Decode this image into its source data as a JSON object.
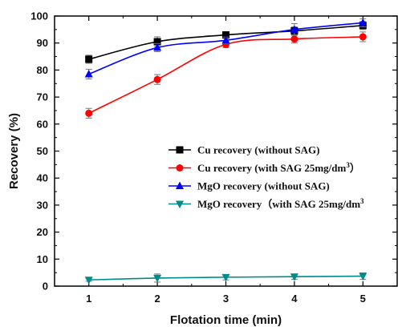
{
  "chart_data": {
    "type": "line",
    "xlabel": "Flotation time (min)",
    "ylabel": "Recovery (%)",
    "x": [
      1,
      2,
      3,
      4,
      5
    ],
    "xticks": [
      "1",
      "2",
      "3",
      "4",
      "5"
    ],
    "xlim": [
      0.5,
      5.5
    ],
    "ylim": [
      0,
      100
    ],
    "yticks": [
      "0",
      "10",
      "20",
      "30",
      "40",
      "50",
      "60",
      "70",
      "80",
      "90",
      "100"
    ],
    "grid": false,
    "legend_position": "center-right",
    "series": [
      {
        "name": "Cu recovery (without SAG)",
        "values": [
          84,
          90.5,
          93,
          94.5,
          96.5
        ],
        "errors": [
          1.5,
          1.8,
          1.2,
          1.5,
          1.5
        ],
        "color": "#000000",
        "marker": "square"
      },
      {
        "name": "Cu recovery (with SAG 25mg/dm3)",
        "values": [
          64,
          76.5,
          89.5,
          91.5,
          92.3
        ],
        "errors": [
          1.8,
          1.8,
          1.2,
          1.5,
          1.8
        ],
        "color": "#ff0000",
        "marker": "circle"
      },
      {
        "name": "MgO recovery (without SAG)",
        "values": [
          78.5,
          88.3,
          91,
          95,
          97.5
        ],
        "errors": [
          1.8,
          1.5,
          1.2,
          2.2,
          1.5
        ],
        "color": "#0000ff",
        "marker": "triangle-up"
      },
      {
        "name": "MgO recovery（with SAG 25mg/dm3",
        "values": [
          2.3,
          3,
          3.3,
          3.5,
          3.7
        ],
        "errors": [
          0.5,
          1.5,
          1.0,
          1.0,
          1.2
        ],
        "color": "#008b8b",
        "marker": "triangle-down"
      }
    ]
  }
}
